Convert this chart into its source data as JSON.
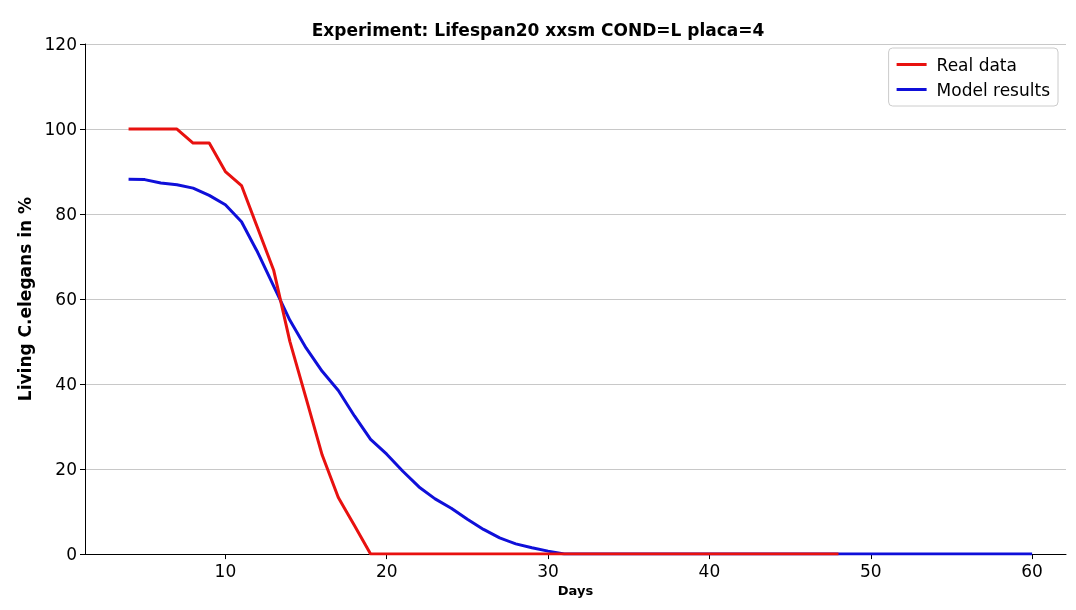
{
  "chart_data": {
    "type": "line",
    "title": "Experiment: Lifespan20 xxsm COND=L placa=4",
    "xlabel": "Days",
    "ylabel": "Living C.elegans in %",
    "x": [
      4,
      5,
      6,
      7,
      8,
      9,
      10,
      11,
      12,
      13,
      14,
      15,
      16,
      17,
      18,
      19,
      20,
      21,
      22,
      23,
      24,
      25,
      26,
      27,
      28,
      29,
      30,
      31,
      32,
      33,
      34,
      35,
      36,
      37,
      38,
      39,
      40,
      41,
      42,
      43,
      44,
      45,
      46,
      47,
      48,
      49,
      50,
      51,
      52,
      53,
      54,
      55,
      56,
      57,
      58,
      59,
      60
    ],
    "series": [
      {
        "name": "Real data",
        "color": "#e8110f",
        "x": [
          4,
          5,
          6,
          7,
          8,
          9,
          10,
          11,
          12,
          13,
          14,
          15,
          16,
          17,
          18,
          19,
          48
        ],
        "values": [
          100,
          100,
          100,
          100,
          96.7,
          96.7,
          90,
          86.7,
          76.7,
          66.7,
          50,
          36.7,
          23.3,
          13.3,
          6.7,
          0,
          0
        ]
      },
      {
        "name": "Model results",
        "color": "#0f0fd9",
        "values": [
          88.2,
          88.1,
          87.3,
          86.9,
          86.1,
          84.4,
          82.2,
          78.2,
          71,
          63,
          55,
          48.5,
          43,
          38.5,
          32.5,
          27,
          23.5,
          19.5,
          15.8,
          13,
          10.8,
          8.2,
          5.8,
          3.8,
          2.4,
          1.5,
          0.7,
          0,
          null,
          null,
          null,
          null,
          null,
          null,
          null,
          null,
          null,
          null,
          null,
          null,
          null,
          null,
          null,
          null,
          0,
          0,
          0,
          0,
          0,
          0,
          0,
          0,
          0,
          0,
          0,
          0,
          0
        ]
      }
    ],
    "xlim": [
      1.3,
      62.1
    ],
    "xticks": [
      10,
      20,
      30,
      40,
      50,
      60
    ],
    "ylim": [
      0,
      120
    ],
    "yticks": [
      0,
      20,
      40,
      60,
      80,
      100,
      120
    ],
    "grid": "y",
    "legend": "top right",
    "marker": "none",
    "line_style": "solid"
  }
}
